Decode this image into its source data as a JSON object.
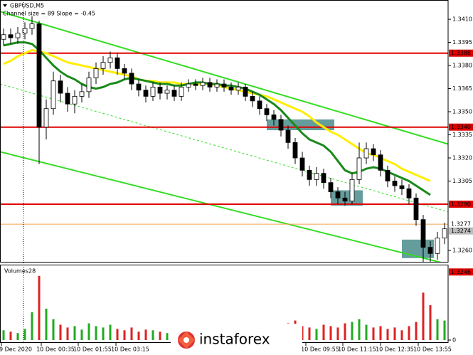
{
  "chart_data": {
    "type": "candlestick",
    "title": "GBPUSD,M5",
    "subtitle": "Channel size = 89 Slope = -0.45",
    "volume_label": "Volumes",
    "watermark": "instaforex",
    "x_labels": [
      "9 Dec 2020",
      "10 Dec 00:35",
      "10 Dec 01:55",
      "10 Dec 03:15",
      "10 Dec 09:55",
      "10 Dec 11:15",
      "10 Dec 12:35",
      "10 Dec 13:55"
    ],
    "open": [
      1.3397,
      1.34,
      1.3398,
      1.3401,
      1.3404,
      1.3407,
      1.334,
      1.3352,
      1.337,
      1.3362,
      1.3355,
      1.336,
      1.3363,
      1.3372,
      1.3378,
      1.3382,
      1.3385,
      1.3378,
      1.3375,
      1.3368,
      1.3364,
      1.336,
      1.3366,
      1.3362,
      1.3364,
      1.336,
      1.3366,
      1.3368,
      1.3367,
      1.3369,
      1.3366,
      1.3368,
      1.3366,
      1.3364,
      1.3366,
      1.336,
      1.3357,
      1.3352,
      1.3348,
      1.3345,
      1.3338,
      1.333,
      1.332,
      1.3312,
      1.3306,
      1.331,
      1.3304,
      1.3298,
      1.3294,
      1.3292,
      1.3306,
      1.332,
      1.3326,
      1.3322,
      1.3312,
      1.3305,
      1.3302,
      1.33,
      1.3294,
      1.328,
      1.3262,
      1.3258,
      1.3268
    ],
    "high": [
      1.3404,
      1.3404,
      1.3405,
      1.3408,
      1.3412,
      1.3409,
      1.3358,
      1.3376,
      1.3374,
      1.3366,
      1.3364,
      1.3368,
      1.3376,
      1.3382,
      1.3386,
      1.3389,
      1.3388,
      1.3381,
      1.3378,
      1.3371,
      1.3367,
      1.3369,
      1.3369,
      1.3367,
      1.3367,
      1.3369,
      1.3371,
      1.3371,
      1.3372,
      1.3372,
      1.3371,
      1.3371,
      1.3369,
      1.3369,
      1.3368,
      1.3363,
      1.336,
      1.3355,
      1.3351,
      1.3348,
      1.3341,
      1.3333,
      1.3324,
      1.3315,
      1.3314,
      1.3313,
      1.3307,
      1.3301,
      1.3298,
      1.331,
      1.333,
      1.333,
      1.3329,
      1.3325,
      1.3315,
      1.3308,
      1.3306,
      1.3303,
      1.3297,
      1.3283,
      1.3266,
      1.3272,
      1.3278
    ],
    "low": [
      1.3393,
      1.3394,
      1.3394,
      1.3397,
      1.34,
      1.3316,
      1.3332,
      1.3348,
      1.3356,
      1.335,
      1.3349,
      1.3356,
      1.3359,
      1.3368,
      1.3374,
      1.3378,
      1.3374,
      1.3371,
      1.3364,
      1.336,
      1.3356,
      1.3357,
      1.3358,
      1.3358,
      1.3357,
      1.3357,
      1.3363,
      1.3364,
      1.3364,
      1.3363,
      1.3363,
      1.3363,
      1.3361,
      1.3361,
      1.3357,
      1.3353,
      1.3348,
      1.3344,
      1.3341,
      1.3334,
      1.3326,
      1.3316,
      1.3308,
      1.3302,
      1.3302,
      1.33,
      1.3294,
      1.329,
      1.3289,
      1.329,
      1.3303,
      1.3316,
      1.3318,
      1.3308,
      1.3301,
      1.3298,
      1.3296,
      1.329,
      1.3276,
      1.325,
      1.3247,
      1.3254,
      1.3264
    ],
    "close": [
      1.34,
      1.3398,
      1.3401,
      1.3404,
      1.3407,
      1.334,
      1.3352,
      1.337,
      1.3362,
      1.3355,
      1.336,
      1.3363,
      1.3372,
      1.3378,
      1.3382,
      1.3385,
      1.3378,
      1.3375,
      1.3368,
      1.3364,
      1.336,
      1.3366,
      1.3362,
      1.3364,
      1.336,
      1.3366,
      1.3368,
      1.3367,
      1.3369,
      1.3366,
      1.3368,
      1.3366,
      1.3364,
      1.3366,
      1.336,
      1.3357,
      1.3352,
      1.3348,
      1.3345,
      1.3338,
      1.333,
      1.332,
      1.3312,
      1.3306,
      1.331,
      1.3304,
      1.3298,
      1.3294,
      1.3292,
      1.3306,
      1.332,
      1.3326,
      1.3322,
      1.3312,
      1.3305,
      1.3302,
      1.33,
      1.3294,
      1.328,
      1.3262,
      1.3258,
      1.3268,
      1.3274
    ],
    "volumes": [
      14,
      12,
      10,
      16,
      40,
      92,
      45,
      30,
      22,
      18,
      20,
      15,
      24,
      20,
      18,
      22,
      16,
      14,
      18,
      12,
      15,
      14,
      12,
      10,
      16,
      12,
      14,
      10,
      12,
      11,
      13,
      12,
      10,
      14,
      18,
      16,
      20,
      18,
      22,
      20,
      24,
      28,
      20,
      18,
      16,
      22,
      20,
      18,
      24,
      26,
      30,
      22,
      18,
      20,
      16,
      18,
      14,
      20,
      26,
      68,
      50,
      30,
      28
    ],
    "vol_ylim": [
      0,
      100
    ],
    "vol_yticks": [
      0
    ],
    "ylim": [
      1.34225,
      1.32526
    ],
    "yticks": [
      {
        "value": 1.341,
        "label": "1.3410"
      },
      1.3395,
      {
        "value": 1.338,
        "label": "1.3380"
      },
      1.3365,
      {
        "value": 1.335,
        "label": "1.3350"
      },
      1.3335,
      {
        "value": 1.332,
        "label": "1.3320"
      },
      1.3305,
      {
        "value": 1.326,
        "label": "1.3260"
      }
    ],
    "levels": [
      {
        "value": 1.3388,
        "label": "1.3388",
        "color": "#e00000"
      },
      {
        "value": 1.334,
        "label": "1.3340",
        "color": "#e00000"
      },
      {
        "value": 1.329,
        "label": "1.3290",
        "color": "#e00000"
      },
      {
        "value": 1.3277,
        "label": "1.3277",
        "color": "#f0a050"
      },
      {
        "value": 1.3246,
        "label": "1.3246",
        "color": "#e00000"
      }
    ],
    "last_price": 1.3274,
    "channel_lines": [
      {
        "start": 1.3415,
        "end": 1.3329,
        "color": "#33dd22",
        "dashed": false
      },
      {
        "start": 1.3368,
        "end": 1.3285,
        "color": "#33dd22",
        "dashed": true
      },
      {
        "start": 1.3324,
        "end": 1.3251,
        "color": "#33dd22",
        "dashed": false
      }
    ],
    "moving_averages": [
      {
        "color": "#ffee00",
        "values": [
          1.3381,
          1.3383,
          1.3386,
          1.3388,
          1.339,
          1.3389,
          1.3388,
          1.3386,
          1.3384,
          1.3382,
          1.3381,
          1.338,
          1.3379,
          1.3378,
          1.3377,
          1.3376,
          1.3375,
          1.3374,
          1.3373,
          1.3371,
          1.337,
          1.337,
          1.3369,
          1.3369,
          1.3369,
          1.3368,
          1.3368,
          1.3368,
          1.3368,
          1.3368,
          1.3367,
          1.3366,
          1.3365,
          1.3364,
          1.3363,
          1.3362,
          1.3361,
          1.336,
          1.3358,
          1.3356,
          1.3354,
          1.3352,
          1.335,
          1.3347,
          1.3343,
          1.334,
          1.3337,
          1.3335,
          1.3332,
          1.3329,
          1.3326,
          1.3323,
          1.3322,
          1.332,
          1.3318,
          1.3316,
          1.3313,
          1.3311,
          1.3309,
          1.3307,
          1.3305,
          null,
          null
        ]
      },
      {
        "color": "#1a8a1a",
        "values": [
          1.3393,
          1.3394,
          1.3395,
          1.3395,
          1.3394,
          1.339,
          1.3385,
          1.338,
          1.3376,
          1.3373,
          1.3371,
          1.3368,
          1.3366,
          1.3365,
          1.3366,
          1.3368,
          1.3369,
          1.3371,
          1.3372,
          1.3371,
          1.337,
          1.3369,
          1.3368,
          1.3368,
          1.3367,
          1.3367,
          1.3368,
          1.3369,
          1.3369,
          1.3368,
          1.3368,
          1.3367,
          1.3367,
          1.3366,
          1.3365,
          1.3363,
          1.3361,
          1.3358,
          1.3355,
          1.3351,
          1.3346,
          1.3341,
          1.3336,
          1.3332,
          1.333,
          1.3328,
          1.3324,
          1.3318,
          1.3312,
          1.331,
          1.3311,
          1.3313,
          1.3314,
          1.3313,
          1.3311,
          1.3309,
          1.3307,
          1.3305,
          1.3302,
          1.3299,
          1.3296,
          null,
          null
        ]
      }
    ],
    "zones": [
      {
        "top": 1.3345,
        "bottom": 1.3338
      },
      {
        "top": 1.3299,
        "bottom": 1.3289
      },
      {
        "top": 1.3267,
        "bottom": 1.3255
      }
    ]
  }
}
